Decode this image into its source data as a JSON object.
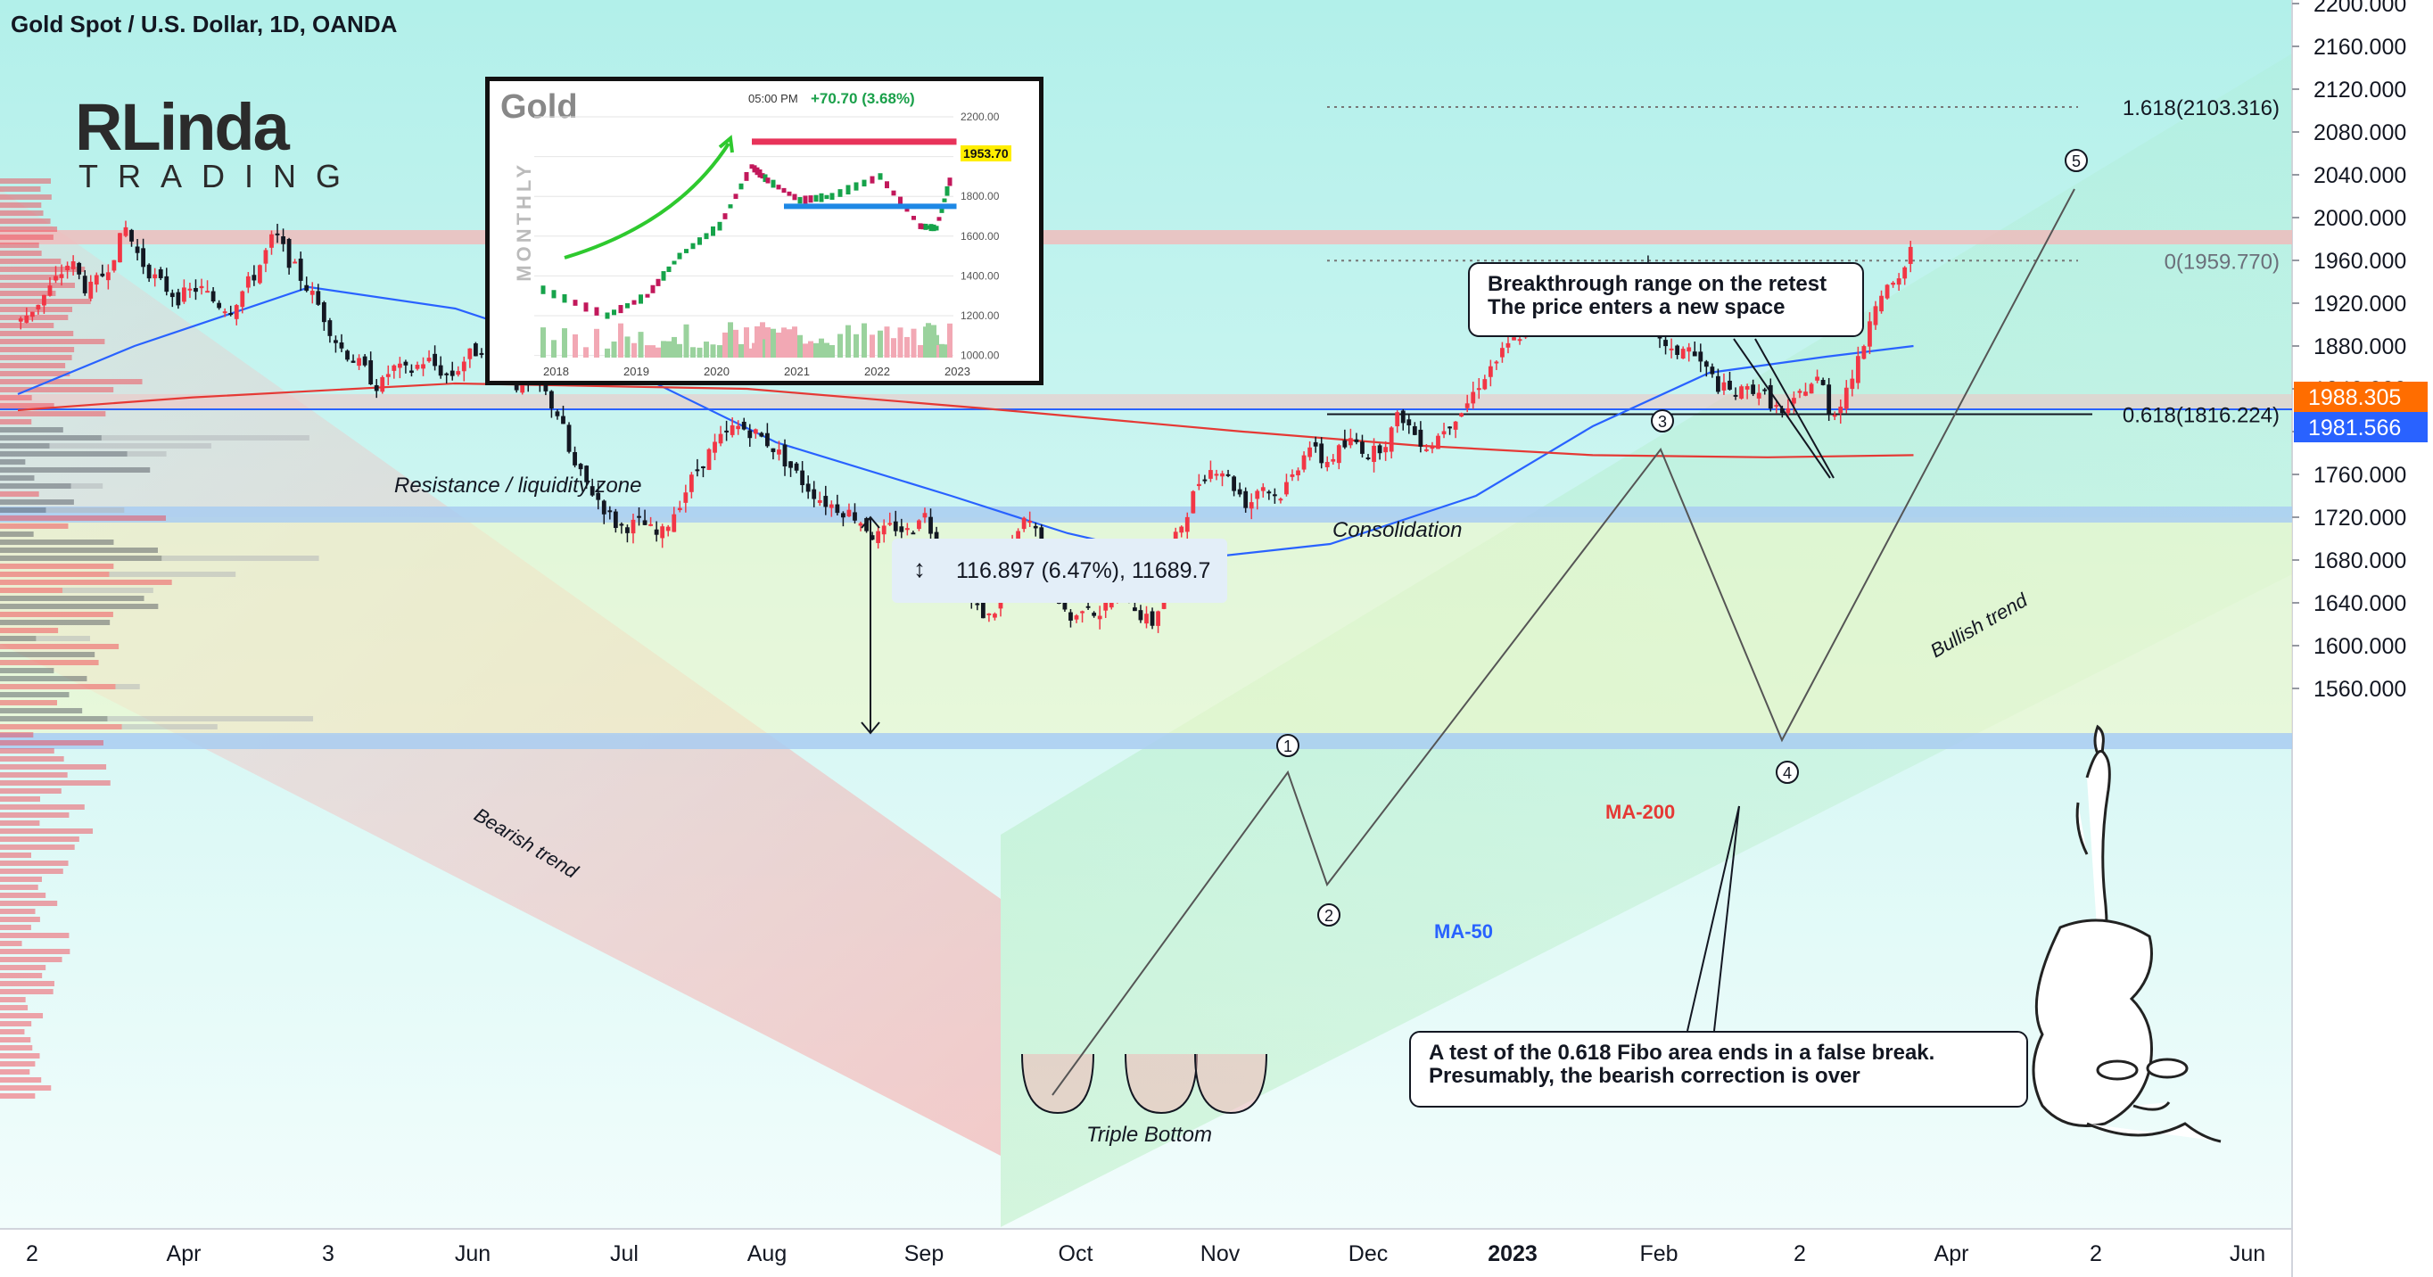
{
  "header": {
    "title": "Gold Spot / U.S. Dollar, 1D, OANDA"
  },
  "logo": {
    "line1": "RLinda",
    "line2": "TRADING"
  },
  "inset": {
    "title": "Gold",
    "time": "05:00 PM",
    "change": "+70.70 (3.68%)",
    "period_label": "MONTHLY",
    "price_label": "1953.70",
    "y_ticks": [
      "2200.00",
      "2000.00",
      "1800.00",
      "1600.00",
      "1400.00",
      "1200.00",
      "1000.00"
    ],
    "x_ticks": [
      "2018",
      "2019",
      "2020",
      "2021",
      "2022",
      "2023"
    ]
  },
  "chart_data": {
    "type": "candlestick",
    "title": "Gold Spot / U.S. Dollar, 1D, OANDA",
    "y_ticks": [
      2200,
      2160,
      2120,
      2080,
      2040,
      2000,
      1960,
      1920,
      1880,
      1840,
      1800,
      1760,
      1720,
      1680,
      1640,
      1600,
      1560
    ],
    "ylim": [
      1545,
      2205
    ],
    "x_ticks": [
      "2",
      "Apr",
      "3",
      "Jun",
      "Jul",
      "Aug",
      "Sep",
      "Oct",
      "Nov",
      "Dec",
      "2023",
      "Feb",
      "2",
      "Apr",
      "2",
      "Jun"
    ],
    "price_path": [
      [
        0,
        1900
      ],
      [
        10,
        1930
      ],
      [
        18,
        1960
      ],
      [
        24,
        1930
      ],
      [
        30,
        1950
      ],
      [
        37,
        1990
      ],
      [
        42,
        1960
      ],
      [
        48,
        1940
      ],
      [
        55,
        1925
      ],
      [
        62,
        1935
      ],
      [
        68,
        1920
      ],
      [
        73,
        1915
      ],
      [
        78,
        1935
      ],
      [
        82,
        1950
      ],
      [
        88,
        1985
      ],
      [
        93,
        1960
      ],
      [
        98,
        1940
      ],
      [
        103,
        1918
      ],
      [
        110,
        1880
      ],
      [
        118,
        1860
      ],
      [
        124,
        1840
      ],
      [
        128,
        1860
      ],
      [
        134,
        1855
      ],
      [
        140,
        1868
      ],
      [
        148,
        1850
      ],
      [
        154,
        1870
      ],
      [
        160,
        1880
      ],
      [
        166,
        1862
      ],
      [
        172,
        1840
      ],
      [
        178,
        1848
      ],
      [
        182,
        1830
      ],
      [
        186,
        1812
      ],
      [
        190,
        1770
      ],
      [
        198,
        1740
      ],
      [
        206,
        1710
      ],
      [
        214,
        1715
      ],
      [
        220,
        1700
      ],
      [
        228,
        1740
      ],
      [
        234,
        1770
      ],
      [
        240,
        1790
      ],
      [
        246,
        1805
      ],
      [
        252,
        1800
      ],
      [
        258,
        1788
      ],
      [
        264,
        1770
      ],
      [
        270,
        1750
      ],
      [
        276,
        1735
      ],
      [
        282,
        1728
      ],
      [
        288,
        1720
      ],
      [
        294,
        1700
      ],
      [
        300,
        1712
      ],
      [
        306,
        1705
      ],
      [
        310,
        1728
      ],
      [
        316,
        1690
      ],
      [
        322,
        1660
      ],
      [
        326,
        1645
      ],
      [
        330,
        1632
      ],
      [
        334,
        1625
      ],
      [
        338,
        1660
      ],
      [
        342,
        1700
      ],
      [
        346,
        1720
      ],
      [
        350,
        1700
      ],
      [
        354,
        1660
      ],
      [
        358,
        1638
      ],
      [
        362,
        1620
      ],
      [
        366,
        1644
      ],
      [
        370,
        1628
      ],
      [
        374,
        1640
      ],
      [
        378,
        1660
      ],
      [
        382,
        1640
      ],
      [
        386,
        1625
      ],
      [
        390,
        1620
      ],
      [
        394,
        1680
      ],
      [
        400,
        1720
      ],
      [
        406,
        1760
      ],
      [
        412,
        1768
      ],
      [
        418,
        1745
      ],
      [
        422,
        1730
      ],
      [
        426,
        1752
      ],
      [
        432,
        1738
      ],
      [
        438,
        1762
      ],
      [
        442,
        1790
      ],
      [
        448,
        1770
      ],
      [
        452,
        1780
      ],
      [
        458,
        1792
      ],
      [
        464,
        1778
      ],
      [
        470,
        1795
      ],
      [
        474,
        1818
      ],
      [
        478,
        1800
      ],
      [
        484,
        1785
      ],
      [
        490,
        1808
      ],
      [
        496,
        1822
      ],
      [
        502,
        1850
      ],
      [
        508,
        1870
      ],
      [
        514,
        1888
      ],
      [
        518,
        1900
      ],
      [
        522,
        1922
      ],
      [
        528,
        1938
      ],
      [
        534,
        1935
      ],
      [
        538,
        1950
      ],
      [
        542,
        1938
      ],
      [
        546,
        1930
      ],
      [
        552,
        1940
      ],
      [
        556,
        1960
      ],
      [
        560,
        1910
      ],
      [
        566,
        1870
      ],
      [
        572,
        1880
      ],
      [
        578,
        1860
      ],
      [
        584,
        1840
      ],
      [
        590,
        1835
      ],
      [
        596,
        1842
      ],
      [
        602,
        1825
      ],
      [
        606,
        1812
      ],
      [
        612,
        1840
      ],
      [
        618,
        1850
      ],
      [
        622,
        1812
      ],
      [
        626,
        1835
      ],
      [
        632,
        1870
      ],
      [
        636,
        1920
      ],
      [
        640,
        1935
      ],
      [
        644,
        1932
      ],
      [
        648,
        1960
      ],
      [
        650,
        1988
      ]
    ],
    "moving_averages": [
      {
        "name": "MA-50",
        "color": "#2962ff",
        "points": [
          [
            0,
            1835
          ],
          [
            40,
            1880
          ],
          [
            100,
            1935
          ],
          [
            150,
            1915
          ],
          [
            200,
            1870
          ],
          [
            260,
            1790
          ],
          [
            320,
            1740
          ],
          [
            360,
            1705
          ],
          [
            400,
            1680
          ],
          [
            450,
            1695
          ],
          [
            500,
            1740
          ],
          [
            540,
            1805
          ],
          [
            580,
            1855
          ],
          [
            620,
            1870
          ],
          [
            650,
            1880
          ]
        ]
      },
      {
        "name": "MA-200",
        "color": "#e53935",
        "points": [
          [
            0,
            1820
          ],
          [
            60,
            1832
          ],
          [
            150,
            1845
          ],
          [
            250,
            1840
          ],
          [
            330,
            1822
          ],
          [
            420,
            1800
          ],
          [
            480,
            1787
          ],
          [
            540,
            1778
          ],
          [
            600,
            1776
          ],
          [
            650,
            1778
          ]
        ]
      }
    ],
    "levels": [
      {
        "label": "1.618(2103.316)",
        "price": 2103.316
      },
      {
        "label": "0(1959.770)",
        "price": 1959.77
      },
      {
        "label": "0.618(1816.224)",
        "price": 1816.224
      }
    ],
    "price_labels": [
      {
        "text": "1988.305",
        "color": "#ff6d00"
      },
      {
        "text": "1981.566",
        "color": "#2962ff"
      }
    ],
    "measurement": {
      "text": "116.897 (6.47%), 11689.7"
    },
    "wave_labels": [
      "1",
      "2",
      "3",
      "4",
      "5"
    ],
    "annotations": [
      "Resistance / liquidity zone",
      "Consolidation",
      "Bearish trend",
      "Bullish trend",
      "Triple Bottom",
      "MA-50",
      "MA-200"
    ],
    "callouts": [
      "Breakthrough range on the retest\nThe price enters a new space",
      "A test of the 0.618 Fibo area ends in a false break.\nPresumably, the bearish correction is over"
    ],
    "colors": {
      "up": "#f23645",
      "down": "#131722",
      "ma50": "#2962ff",
      "ma200": "#e53935",
      "background_top": "#b2f0ea",
      "background_bottom": "#f2fdfc"
    }
  }
}
